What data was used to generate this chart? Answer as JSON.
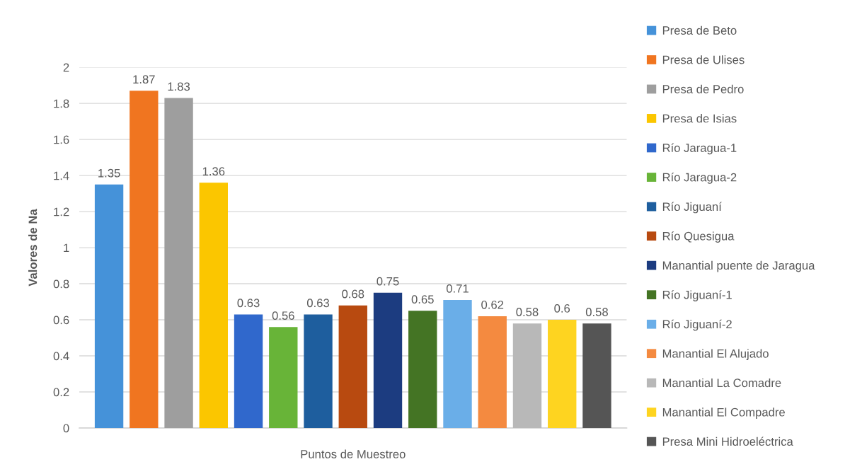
{
  "chart_data": {
    "type": "bar",
    "categories": [
      null
    ],
    "xlabel": "Puntos de Muestreo",
    "ylabel": "Valores de Na",
    "series": [
      {
        "name": "Presa de Beto",
        "color": "#4592d9",
        "values": [
          1.35
        ]
      },
      {
        "name": "Presa de Ulises",
        "color": "#f07520",
        "values": [
          1.87
        ]
      },
      {
        "name": "Presa de Pedro",
        "color": "#9e9e9e",
        "values": [
          1.83
        ]
      },
      {
        "name": "Presa de Isias",
        "color": "#fbc600",
        "values": [
          1.36
        ]
      },
      {
        "name": "Río Jaragua-1",
        "color": "#3068cc",
        "values": [
          0.63
        ]
      },
      {
        "name": "Río Jaragua-2",
        "color": "#68b438",
        "values": [
          0.56
        ]
      },
      {
        "name": "Río Jiguaní",
        "color": "#1e5e9e",
        "values": [
          0.63
        ]
      },
      {
        "name": "Río Quesigua",
        "color": "#b84a10",
        "values": [
          0.68
        ]
      },
      {
        "name": "Manantial puente de Jaragua",
        "color": "#1c3c80",
        "values": [
          0.75
        ]
      },
      {
        "name": "Río Jiguaní-1",
        "color": "#447424",
        "values": [
          0.65
        ]
      },
      {
        "name": "Río Jiguaní-2",
        "color": "#6aaee8",
        "values": [
          0.71
        ]
      },
      {
        "name": "Manantial El Alujado",
        "color": "#f48a40",
        "values": [
          0.62
        ]
      },
      {
        "name": "Manantial La Comadre",
        "color": "#b8b8b8",
        "values": [
          0.58
        ]
      },
      {
        "name": "Manantial El Compadre",
        "color": "#fed420",
        "values": [
          0.6
        ]
      },
      {
        "name": "Presa Mini Hidroeléctrica",
        "color": "#555555",
        "values": [
          0.58
        ]
      }
    ],
    "ylim": [
      0,
      2
    ],
    "yticks": [
      0,
      0.2,
      0.4,
      0.6,
      0.8,
      1,
      1.2,
      1.4,
      1.6,
      1.8,
      2
    ],
    "grid": "y",
    "legend": "right",
    "data_labels": true
  }
}
